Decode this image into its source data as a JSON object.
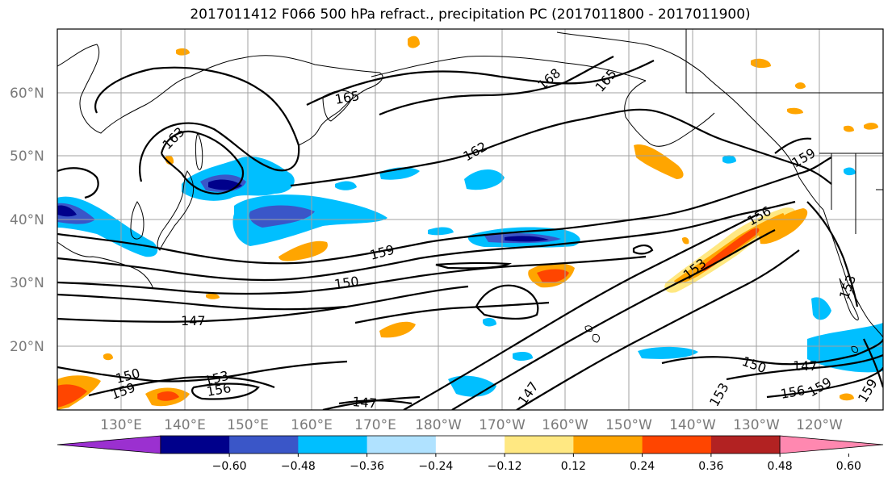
{
  "title": "2017011412 F066 500 hPa refract., precipitation PC (2017011800 - 2017011900)",
  "lat_labels": [
    "60°N",
    "50°N",
    "40°N",
    "30°N",
    "20°N"
  ],
  "lon_labels": [
    "130°E",
    "140°E",
    "150°E",
    "160°E",
    "170°E",
    "180°W",
    "170°W",
    "160°W",
    "150°W",
    "140°W",
    "130°W",
    "120°W"
  ],
  "contour_labels": [
    "165",
    "168",
    "165",
    "163",
    "162",
    "159",
    "159",
    "156",
    "153",
    "150",
    "147",
    "150",
    "147",
    "156",
    "159",
    "150",
    "153",
    "156",
    "147",
    "153",
    "147",
    "153",
    "159",
    "159"
  ],
  "colorbar": {
    "ticks": [
      "−0.60",
      "−0.48",
      "−0.36",
      "−0.24",
      "−0.12",
      "0.12",
      "0.24",
      "0.36",
      "0.48",
      "0.60"
    ],
    "colors": [
      "#9b30d0",
      "#00008b",
      "#3a56c8",
      "#00bfff",
      "#b0e2ff",
      "#ffffff",
      "#ffe882",
      "#ffa500",
      "#ff4500",
      "#b22222",
      "#ff88b0"
    ]
  },
  "colors": {
    "contour": "#000000",
    "grid": "#a0a0a0",
    "coast": "#000000"
  }
}
